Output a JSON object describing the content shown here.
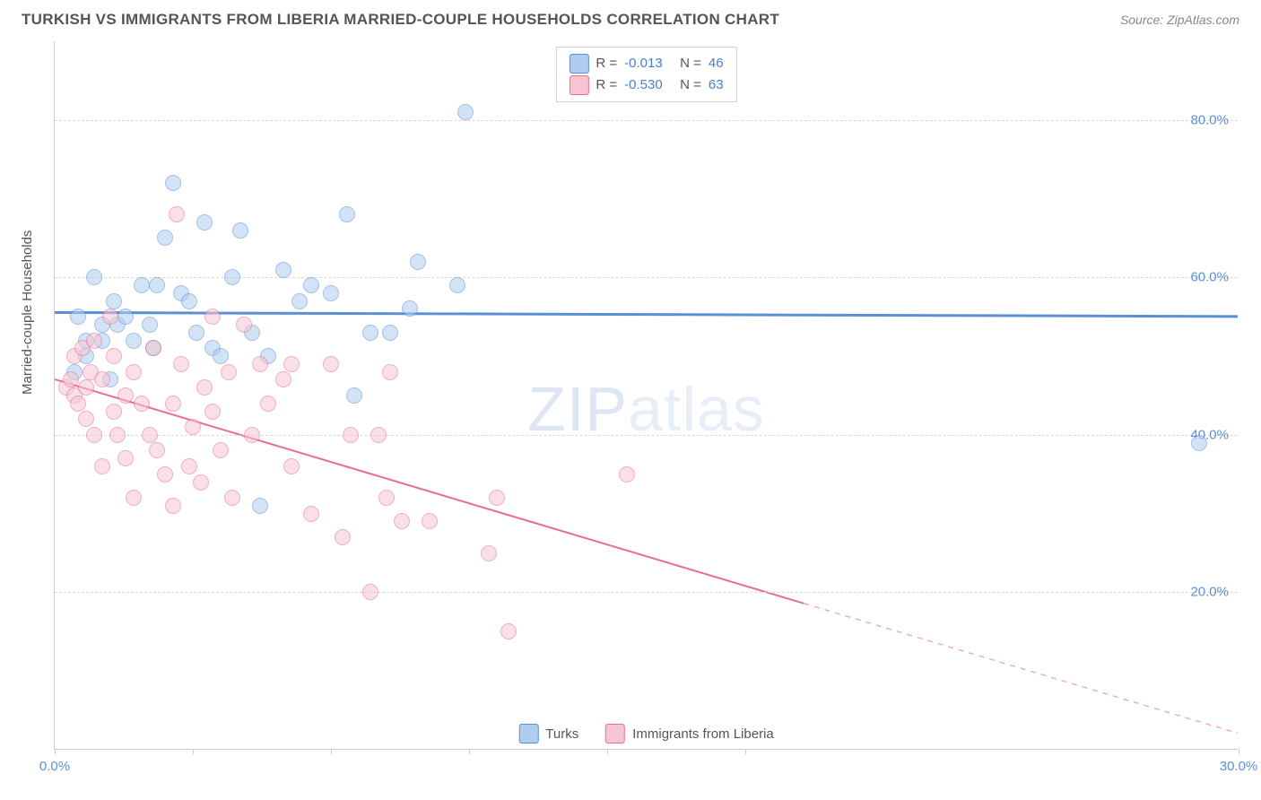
{
  "header": {
    "title": "TURKISH VS IMMIGRANTS FROM LIBERIA MARRIED-COUPLE HOUSEHOLDS CORRELATION CHART",
    "source": "Source: ZipAtlas.com"
  },
  "ylabel": "Married-couple Households",
  "watermark": {
    "part1": "ZIP",
    "part2": "atlas"
  },
  "chart": {
    "xlim": [
      0,
      30
    ],
    "ylim": [
      0,
      90
    ],
    "yticks": [
      {
        "v": 20,
        "label": "20.0%"
      },
      {
        "v": 40,
        "label": "40.0%"
      },
      {
        "v": 60,
        "label": "60.0%"
      },
      {
        "v": 80,
        "label": "80.0%"
      }
    ],
    "xticks": [
      0,
      3.5,
      7,
      10.5,
      14,
      17.5,
      30
    ],
    "xlabels": [
      {
        "v": 0,
        "label": "0.0%"
      },
      {
        "v": 30,
        "label": "30.0%"
      }
    ],
    "ytick_color": "#5b8fd6",
    "xlabel_color": "#5b8fd6",
    "grid_color": "#d8d8d8",
    "series": [
      {
        "name": "Turks",
        "fill": "#aecdf0",
        "stroke": "#5b8fd6",
        "trend": {
          "y_at_x0": 55.5,
          "y_at_xmax": 55.0,
          "solid_until_x": 30,
          "width": 3
        },
        "points": [
          [
            0.5,
            48
          ],
          [
            0.6,
            55
          ],
          [
            0.8,
            52
          ],
          [
            0.8,
            50
          ],
          [
            1.0,
            60
          ],
          [
            1.2,
            52
          ],
          [
            1.2,
            54
          ],
          [
            1.4,
            47
          ],
          [
            1.5,
            57
          ],
          [
            1.6,
            54
          ],
          [
            1.8,
            55
          ],
          [
            2.0,
            52
          ],
          [
            2.2,
            59
          ],
          [
            2.4,
            54
          ],
          [
            2.5,
            51
          ],
          [
            2.6,
            59
          ],
          [
            2.8,
            65
          ],
          [
            3.0,
            72
          ],
          [
            3.2,
            58
          ],
          [
            3.4,
            57
          ],
          [
            3.6,
            53
          ],
          [
            3.8,
            67
          ],
          [
            4.0,
            51
          ],
          [
            4.2,
            50
          ],
          [
            4.5,
            60
          ],
          [
            4.7,
            66
          ],
          [
            5.0,
            53
          ],
          [
            5.2,
            31
          ],
          [
            5.4,
            50
          ],
          [
            5.8,
            61
          ],
          [
            6.2,
            57
          ],
          [
            6.5,
            59
          ],
          [
            7.0,
            58
          ],
          [
            7.4,
            68
          ],
          [
            7.6,
            45
          ],
          [
            8.0,
            53
          ],
          [
            8.5,
            53
          ],
          [
            9.0,
            56
          ],
          [
            9.2,
            62
          ],
          [
            10.2,
            59
          ],
          [
            10.4,
            81
          ],
          [
            29.0,
            39
          ]
        ]
      },
      {
        "name": "Immigrants from Liberia",
        "fill": "#f6c5d2",
        "stroke": "#e76e93",
        "trend": {
          "y_at_x0": 47.0,
          "y_at_xmax": 2.0,
          "solid_until_x": 19,
          "width": 2
        },
        "points": [
          [
            0.3,
            46
          ],
          [
            0.4,
            47
          ],
          [
            0.5,
            45
          ],
          [
            0.5,
            50
          ],
          [
            0.6,
            44
          ],
          [
            0.7,
            51
          ],
          [
            0.8,
            46
          ],
          [
            0.8,
            42
          ],
          [
            0.9,
            48
          ],
          [
            1.0,
            52
          ],
          [
            1.0,
            40
          ],
          [
            1.2,
            47
          ],
          [
            1.2,
            36
          ],
          [
            1.4,
            55
          ],
          [
            1.5,
            50
          ],
          [
            1.5,
            43
          ],
          [
            1.6,
            40
          ],
          [
            1.8,
            37
          ],
          [
            1.8,
            45
          ],
          [
            2.0,
            48
          ],
          [
            2.0,
            32
          ],
          [
            2.2,
            44
          ],
          [
            2.4,
            40
          ],
          [
            2.5,
            51
          ],
          [
            2.6,
            38
          ],
          [
            2.8,
            35
          ],
          [
            3.0,
            44
          ],
          [
            3.0,
            31
          ],
          [
            3.1,
            68
          ],
          [
            3.2,
            49
          ],
          [
            3.4,
            36
          ],
          [
            3.5,
            41
          ],
          [
            3.7,
            34
          ],
          [
            3.8,
            46
          ],
          [
            4.0,
            55
          ],
          [
            4.0,
            43
          ],
          [
            4.2,
            38
          ],
          [
            4.4,
            48
          ],
          [
            4.5,
            32
          ],
          [
            4.8,
            54
          ],
          [
            5.0,
            40
          ],
          [
            5.2,
            49
          ],
          [
            5.4,
            44
          ],
          [
            5.8,
            47
          ],
          [
            6.0,
            49
          ],
          [
            6.0,
            36
          ],
          [
            6.5,
            30
          ],
          [
            7.0,
            49
          ],
          [
            7.3,
            27
          ],
          [
            7.5,
            40
          ],
          [
            8.0,
            20
          ],
          [
            8.2,
            40
          ],
          [
            8.4,
            32
          ],
          [
            8.5,
            48
          ],
          [
            8.8,
            29
          ],
          [
            9.5,
            29
          ],
          [
            11.0,
            25
          ],
          [
            11.2,
            32
          ],
          [
            11.5,
            15
          ],
          [
            14.5,
            35
          ]
        ]
      }
    ]
  },
  "legend_top": {
    "rows": [
      {
        "swatch_fill": "#aecdf0",
        "swatch_stroke": "#5b8fd6",
        "r_label": "R =",
        "r_value": "-0.013",
        "n_label": "N =",
        "n_value": "46"
      },
      {
        "swatch_fill": "#f6c5d2",
        "swatch_stroke": "#e76e93",
        "r_label": "R =",
        "r_value": "-0.530",
        "n_label": "N =",
        "n_value": "63"
      }
    ],
    "label_color": "#555555",
    "value_color": "#4a7fc9"
  },
  "legend_bottom": {
    "items": [
      {
        "swatch_fill": "#aecdf0",
        "swatch_stroke": "#5b8fd6",
        "label": "Turks"
      },
      {
        "swatch_fill": "#f6c5d2",
        "swatch_stroke": "#e76e93",
        "label": "Immigrants from Liberia"
      }
    ]
  }
}
